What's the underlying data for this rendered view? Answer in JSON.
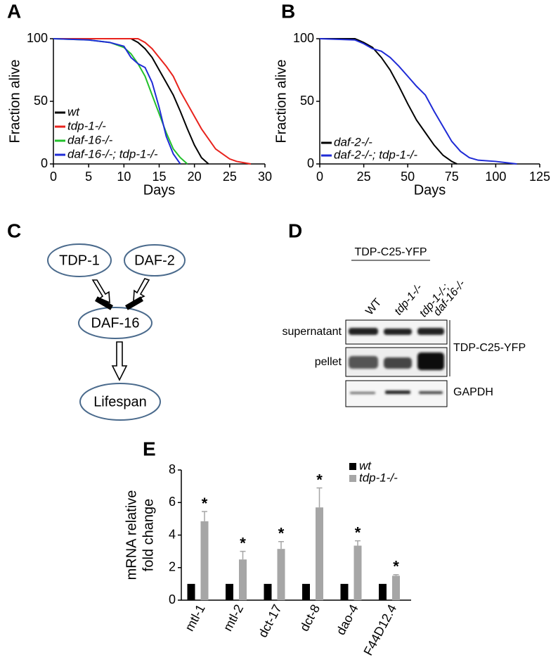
{
  "panel_labels": [
    "A",
    "B",
    "C",
    "D",
    "E"
  ],
  "chart_data": [
    {
      "type": "line",
      "xlabel": "Days",
      "ylabel": "Fraction alive",
      "xlim": [
        0,
        30
      ],
      "xticks": [
        0,
        5,
        10,
        15,
        20,
        25,
        30
      ],
      "ylim": [
        0,
        100
      ],
      "yticks": [
        0,
        50,
        100
      ],
      "series": [
        {
          "name": "wt",
          "color": "#000000",
          "x": [
            0,
            11,
            12,
            13,
            14,
            15,
            16,
            17,
            18,
            19,
            20,
            21,
            22
          ],
          "values": [
            100,
            100,
            97,
            92,
            85,
            75,
            65,
            55,
            42,
            28,
            15,
            5,
            0
          ]
        },
        {
          "name": "tdp-1-/-",
          "color": "#e8231d",
          "x": [
            0,
            12,
            13,
            14,
            15,
            16,
            17,
            18,
            19,
            20,
            21,
            22,
            23,
            24,
            25,
            26,
            28
          ],
          "values": [
            100,
            100,
            97,
            92,
            85,
            78,
            70,
            58,
            48,
            38,
            28,
            20,
            12,
            8,
            4,
            2,
            0
          ]
        },
        {
          "name": "daf-16-/-",
          "color": "#22c02a",
          "x": [
            0,
            5,
            8,
            10,
            11,
            12,
            13,
            14,
            15,
            16,
            17,
            18,
            19
          ],
          "values": [
            100,
            99,
            97,
            93,
            88,
            80,
            70,
            55,
            40,
            25,
            12,
            5,
            0
          ]
        },
        {
          "name": "daf-16-/-; tdp-1-/-",
          "color": "#1f2bd6",
          "x": [
            0,
            5,
            8,
            10,
            11,
            12,
            13,
            14,
            15,
            16,
            17,
            18
          ],
          "values": [
            100,
            99,
            97,
            94,
            85,
            80,
            77,
            65,
            45,
            22,
            8,
            0
          ]
        }
      ]
    },
    {
      "type": "line",
      "xlabel": "Days",
      "ylabel": "Fraction alive",
      "xlim": [
        0,
        125
      ],
      "xticks": [
        0,
        25,
        50,
        75,
        100,
        125
      ],
      "ylim": [
        0,
        100
      ],
      "yticks": [
        0,
        50,
        100
      ],
      "series": [
        {
          "name": "daf-2-/-",
          "color": "#000000",
          "x": [
            0,
            20,
            25,
            30,
            35,
            40,
            45,
            50,
            55,
            60,
            65,
            70,
            75,
            78
          ],
          "values": [
            100,
            100,
            97,
            93,
            85,
            75,
            62,
            48,
            35,
            25,
            15,
            7,
            2,
            0
          ]
        },
        {
          "name": "daf-2-/-; tdp-1-/-",
          "color": "#1f2bd6",
          "x": [
            0,
            20,
            25,
            30,
            35,
            40,
            45,
            50,
            55,
            60,
            65,
            70,
            75,
            80,
            85,
            90,
            100,
            112
          ],
          "values": [
            100,
            99,
            96,
            92,
            90,
            85,
            78,
            70,
            62,
            55,
            42,
            30,
            18,
            10,
            5,
            3,
            2,
            0
          ]
        }
      ]
    },
    {
      "type": "bar",
      "ylabel": [
        "mRNA relative",
        "fold change"
      ],
      "categories": [
        "mtl-1",
        "mtl-2",
        "dct-17",
        "dct-8",
        "dao-4",
        "F44D12.4"
      ],
      "ylim": [
        0,
        8
      ],
      "yticks": [
        0,
        2,
        4,
        6,
        8
      ],
      "series": [
        {
          "name": "wt",
          "color": "#000000",
          "values": [
            1,
            1,
            1,
            1,
            1,
            1
          ]
        },
        {
          "name": "tdp-1-/-",
          "color": "#a6a6a6",
          "values": [
            4.85,
            2.5,
            3.15,
            5.7,
            3.35,
            1.5
          ],
          "errors": [
            0.6,
            0.5,
            0.45,
            1.2,
            0.3,
            0.07
          ]
        }
      ],
      "annotations": [
        "*",
        "*",
        "*",
        "*",
        "*",
        "*"
      ]
    }
  ],
  "diagram": {
    "nodes": [
      {
        "label": "TDP-1"
      },
      {
        "label": "DAF-2"
      },
      {
        "label": "DAF-16"
      },
      {
        "label": "Lifespan"
      }
    ]
  },
  "blot": {
    "construct": "TDP-C25-YFP",
    "lanes": [
      [
        "WT"
      ],
      [
        "tdp-1-/-"
      ],
      [
        "tdp-1-/-;",
        "daf-16-/-"
      ]
    ],
    "rows": [
      "supernatant",
      "pellet"
    ],
    "right_labels": [
      "TDP-C25-YFP",
      "GAPDH"
    ]
  }
}
